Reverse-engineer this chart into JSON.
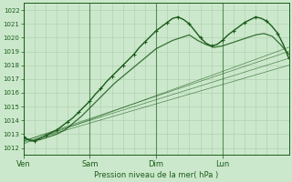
{
  "bg_color": "#cce8cc",
  "grid_color": "#aaccaa",
  "line_color": "#1a5c1a",
  "title": "Pression niveau de la mer( hPa )",
  "ylim": [
    1011.5,
    1022.5
  ],
  "yticks": [
    1012,
    1013,
    1014,
    1015,
    1016,
    1017,
    1018,
    1019,
    1020,
    1021,
    1022
  ],
  "day_labels": [
    "Ven",
    "Sam",
    "Dim",
    "Lun"
  ],
  "day_positions": [
    0,
    24,
    48,
    72
  ],
  "xlim": [
    0,
    96
  ],
  "figsize": [
    3.2,
    2.0
  ],
  "dpi": 100,
  "main_line_x": [
    0,
    2,
    4,
    6,
    8,
    10,
    12,
    14,
    16,
    18,
    20,
    22,
    24,
    26,
    28,
    30,
    32,
    34,
    36,
    38,
    40,
    42,
    44,
    46,
    48,
    50,
    52,
    54,
    56,
    58,
    60,
    62,
    64,
    66,
    68,
    70,
    72,
    74,
    76,
    78,
    80,
    82,
    84,
    86,
    88,
    90,
    92,
    94,
    96
  ],
  "main_line_y": [
    1012.8,
    1012.6,
    1012.5,
    1012.7,
    1012.9,
    1013.1,
    1013.3,
    1013.6,
    1013.9,
    1014.2,
    1014.6,
    1015.0,
    1015.4,
    1015.9,
    1016.3,
    1016.8,
    1017.2,
    1017.6,
    1018.0,
    1018.4,
    1018.8,
    1019.3,
    1019.7,
    1020.1,
    1020.5,
    1020.8,
    1021.1,
    1021.4,
    1021.5,
    1021.3,
    1021.0,
    1020.5,
    1020.0,
    1019.6,
    1019.4,
    1019.5,
    1019.8,
    1020.2,
    1020.5,
    1020.8,
    1021.1,
    1021.3,
    1021.5,
    1021.4,
    1021.2,
    1020.8,
    1020.3,
    1019.5,
    1018.5
  ],
  "curve2_x": [
    0,
    3,
    6,
    9,
    12,
    15,
    18,
    21,
    24,
    27,
    30,
    33,
    36,
    39,
    42,
    45,
    48,
    51,
    54,
    57,
    60,
    63,
    66,
    69,
    72,
    75,
    78,
    81,
    84,
    87,
    90,
    93,
    96
  ],
  "curve2_y": [
    1012.7,
    1012.5,
    1012.6,
    1012.8,
    1013.0,
    1013.3,
    1013.8,
    1014.3,
    1014.9,
    1015.5,
    1016.1,
    1016.7,
    1017.2,
    1017.7,
    1018.2,
    1018.7,
    1019.2,
    1019.5,
    1019.8,
    1020.0,
    1020.2,
    1019.8,
    1019.5,
    1019.3,
    1019.4,
    1019.6,
    1019.8,
    1020.0,
    1020.2,
    1020.3,
    1020.1,
    1019.5,
    1018.8
  ],
  "ens_lines": [
    {
      "x": [
        0,
        96
      ],
      "y": [
        1012.5,
        1019.0
      ]
    },
    {
      "x": [
        0,
        96
      ],
      "y": [
        1012.5,
        1018.5
      ]
    },
    {
      "x": [
        0,
        96
      ],
      "y": [
        1012.4,
        1018.0
      ]
    },
    {
      "x": [
        0,
        96
      ],
      "y": [
        1012.3,
        1019.3
      ]
    }
  ]
}
